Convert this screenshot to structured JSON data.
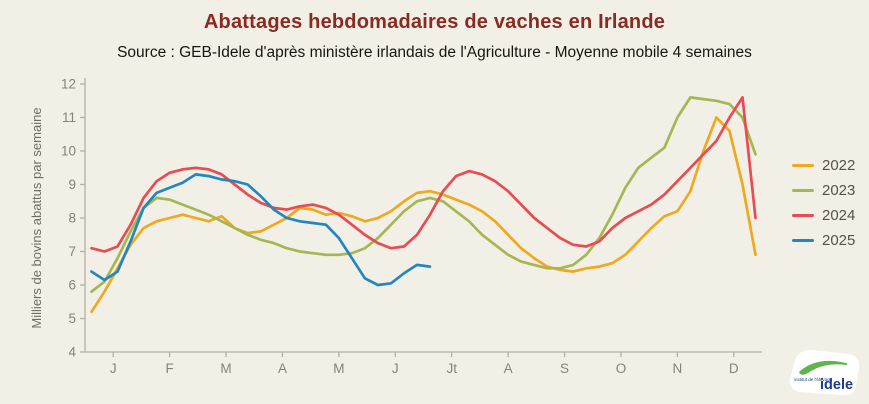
{
  "chart_data": {
    "type": "line",
    "title": "Abattages hebdomadaires de vaches en Irlande",
    "subtitle": "Source : GEB-Idele d'après ministère irlandais de l'Agriculture - Moyenne mobile 4 semaines",
    "ylabel": "Milliers de bovins abattus par semaine",
    "xlabel": "",
    "ylim": [
      4,
      12
    ],
    "yticks": [
      4,
      5,
      6,
      7,
      8,
      9,
      10,
      11,
      12
    ],
    "month_labels": [
      "J",
      "F",
      "M",
      "A",
      "M",
      "J",
      "Jt",
      "A",
      "S",
      "O",
      "N",
      "D"
    ],
    "weeks_per_year": 52,
    "grid": false,
    "legend_position": "right",
    "series": [
      {
        "name": "2022",
        "color": "#F0A81E",
        "values": [
          5.2,
          5.8,
          6.5,
          7.2,
          7.7,
          7.9,
          8.0,
          8.1,
          8.0,
          7.9,
          8.05,
          7.7,
          7.55,
          7.6,
          7.8,
          8.0,
          8.3,
          8.25,
          8.1,
          8.15,
          8.05,
          7.9,
          8.0,
          8.2,
          8.5,
          8.75,
          8.8,
          8.7,
          8.55,
          8.4,
          8.2,
          7.9,
          7.5,
          7.1,
          6.8,
          6.55,
          6.45,
          6.4,
          6.5,
          6.55,
          6.65,
          6.9,
          7.3,
          7.7,
          8.05,
          8.2,
          8.8,
          10.0,
          11.0,
          10.6,
          9.0,
          6.9
        ]
      },
      {
        "name": "2023",
        "color": "#A5B751",
        "values": [
          5.8,
          6.1,
          6.8,
          7.6,
          8.3,
          8.6,
          8.55,
          8.4,
          8.25,
          8.1,
          7.9,
          7.7,
          7.5,
          7.35,
          7.25,
          7.1,
          7.0,
          6.95,
          6.9,
          6.9,
          6.95,
          7.1,
          7.4,
          7.8,
          8.2,
          8.5,
          8.6,
          8.5,
          8.2,
          7.9,
          7.5,
          7.2,
          6.9,
          6.7,
          6.6,
          6.5,
          6.5,
          6.6,
          6.9,
          7.4,
          8.1,
          8.9,
          9.5,
          9.8,
          10.1,
          11.0,
          11.6,
          11.55,
          11.5,
          11.4,
          11.0,
          9.9
        ]
      },
      {
        "name": "2024",
        "color": "#E84B52",
        "values": [
          7.1,
          7.0,
          7.15,
          7.8,
          8.6,
          9.1,
          9.35,
          9.45,
          9.5,
          9.45,
          9.3,
          9.0,
          8.7,
          8.45,
          8.3,
          8.25,
          8.35,
          8.4,
          8.3,
          8.1,
          7.8,
          7.5,
          7.25,
          7.1,
          7.15,
          7.5,
          8.1,
          8.8,
          9.25,
          9.4,
          9.3,
          9.1,
          8.8,
          8.4,
          8.0,
          7.7,
          7.4,
          7.2,
          7.15,
          7.3,
          7.7,
          8.0,
          8.2,
          8.4,
          8.7,
          9.1,
          9.5,
          9.9,
          10.3,
          11.0,
          11.6,
          8.0
        ]
      },
      {
        "name": "2025",
        "color": "#2486BE",
        "values": [
          6.4,
          6.15,
          6.4,
          7.3,
          8.3,
          8.75,
          8.9,
          9.05,
          9.3,
          9.25,
          9.15,
          9.1,
          9.0,
          8.65,
          8.25,
          8.0,
          7.9,
          7.85,
          7.8,
          7.4,
          6.8,
          6.2,
          6.0,
          6.05,
          6.35,
          6.6,
          6.55
        ]
      }
    ]
  },
  "styles": {
    "background": "#F2F0E6",
    "title_color": "#8A2A21",
    "subtitle_color": "#17160F",
    "axis_color": "#B3B1A4",
    "tick_label_color": "#85847A",
    "legend_text_color": "#54534C",
    "line_width": 2.7
  },
  "logo": {
    "brand": "idele",
    "institute": "institut de l'élevage",
    "brand_color": "#1D3C8F",
    "swoosh_color": "#5FB44E"
  }
}
